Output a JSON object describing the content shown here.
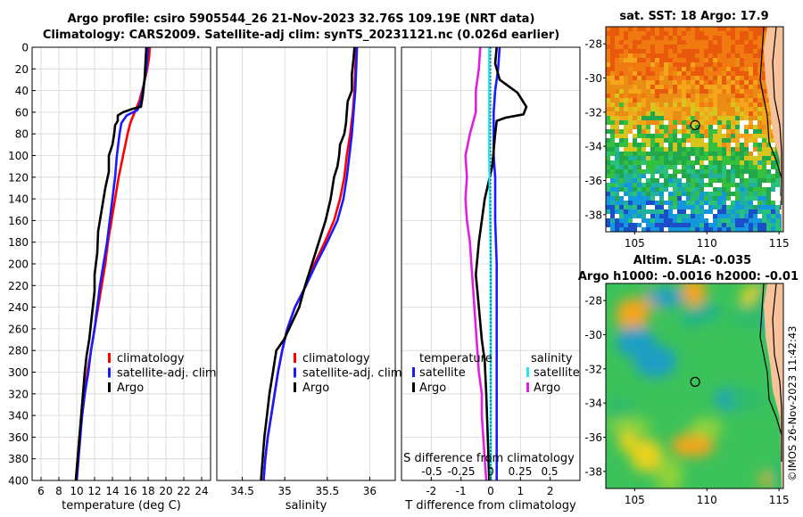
{
  "title": {
    "line1": "Argo profile: csiro 5905544_26 21-Nov-2023 32.76S 109.19E (NRT data)",
    "line2": "Climatology: CARS2009. Satellite-adj clim: synTS_20231121.nc (0.026d earlier)"
  },
  "stamp": "©IMOS 26-Nov-2023 11:42:43",
  "colors": {
    "climatology": "#ff0000",
    "satellite_adj": "#1a1aff",
    "argo": "#000000",
    "sat_sal": "#22e6f0",
    "argo_sal": "#e020e0"
  },
  "chart_data": [
    {
      "type": "line",
      "name": "temperature-profile",
      "xlabel": "temperature (deg C)",
      "ylabel": "",
      "xlim": [
        5,
        25
      ],
      "ylim": [
        400,
        0
      ],
      "xticks": [
        6,
        8,
        10,
        12,
        14,
        16,
        18,
        20,
        22,
        24
      ],
      "yticks": [
        0,
        20,
        40,
        60,
        80,
        100,
        120,
        140,
        160,
        180,
        200,
        220,
        240,
        260,
        280,
        300,
        320,
        340,
        360,
        380,
        400
      ],
      "legend": [
        "climatology",
        "satellite-adj. clim",
        "Argo"
      ],
      "series": [
        {
          "name": "climatology",
          "color": "#ff0000",
          "points": [
            [
              18.2,
              0
            ],
            [
              18.1,
              10
            ],
            [
              17.9,
              20
            ],
            [
              17.5,
              35
            ],
            [
              17.0,
              50
            ],
            [
              16.5,
              60
            ],
            [
              16.0,
              70
            ],
            [
              15.7,
              80
            ],
            [
              15.2,
              100
            ],
            [
              14.7,
              120
            ],
            [
              14.3,
              140
            ],
            [
              13.9,
              160
            ],
            [
              13.5,
              180
            ],
            [
              13.2,
              200
            ],
            [
              12.8,
              220
            ],
            [
              12.4,
              240
            ],
            [
              12.0,
              260
            ],
            [
              11.6,
              280
            ],
            [
              11.2,
              300
            ],
            [
              10.9,
              320
            ],
            [
              10.6,
              340
            ],
            [
              10.3,
              360
            ],
            [
              10.1,
              380
            ],
            [
              9.9,
              400
            ]
          ]
        },
        {
          "name": "satellite-adj. clim",
          "color": "#1a1aff",
          "points": [
            [
              18.0,
              0
            ],
            [
              17.9,
              10
            ],
            [
              17.8,
              20
            ],
            [
              17.5,
              35
            ],
            [
              17.2,
              50
            ],
            [
              16.8,
              58
            ],
            [
              15.6,
              63
            ],
            [
              15.0,
              70
            ],
            [
              14.8,
              80
            ],
            [
              14.5,
              100
            ],
            [
              14.3,
              120
            ],
            [
              14.0,
              140
            ],
            [
              13.7,
              160
            ],
            [
              13.4,
              180
            ],
            [
              13.0,
              200
            ],
            [
              12.6,
              220
            ],
            [
              12.3,
              240
            ],
            [
              12.0,
              260
            ],
            [
              11.6,
              280
            ],
            [
              11.3,
              300
            ],
            [
              10.9,
              320
            ],
            [
              10.6,
              340
            ],
            [
              10.4,
              360
            ],
            [
              10.2,
              380
            ],
            [
              10.0,
              400
            ]
          ]
        },
        {
          "name": "Argo",
          "color": "#000000",
          "points": [
            [
              17.8,
              0
            ],
            [
              17.7,
              15
            ],
            [
              17.6,
              30
            ],
            [
              17.4,
              45
            ],
            [
              17.2,
              55
            ],
            [
              16.2,
              57
            ],
            [
              15.2,
              60
            ],
            [
              14.6,
              63
            ],
            [
              14.6,
              68
            ],
            [
              14.3,
              72
            ],
            [
              14.2,
              80
            ],
            [
              14.0,
              90
            ],
            [
              13.6,
              100
            ],
            [
              13.6,
              115
            ],
            [
              13.2,
              130
            ],
            [
              12.8,
              150
            ],
            [
              12.4,
              170
            ],
            [
              12.3,
              190
            ],
            [
              12.0,
              210
            ],
            [
              12.0,
              225
            ],
            [
              11.8,
              240
            ],
            [
              11.6,
              255
            ],
            [
              11.4,
              270
            ],
            [
              11.1,
              285
            ],
            [
              10.9,
              300
            ],
            [
              10.7,
              320
            ],
            [
              10.5,
              340
            ],
            [
              10.3,
              360
            ],
            [
              10.1,
              380
            ],
            [
              9.9,
              400
            ]
          ]
        }
      ]
    },
    {
      "type": "line",
      "name": "salinity-profile",
      "xlabel": "salinity",
      "xlim": [
        34.2,
        36.3
      ],
      "ylim": [
        400,
        0
      ],
      "xticks": [
        34.5,
        35,
        35.5,
        36
      ],
      "legend": [
        "climatology",
        "satellite-adj. clim",
        "Argo"
      ],
      "series": [
        {
          "name": "climatology",
          "color": "#ff0000",
          "points": [
            [
              35.84,
              0
            ],
            [
              35.83,
              20
            ],
            [
              35.82,
              40
            ],
            [
              35.8,
              60
            ],
            [
              35.77,
              80
            ],
            [
              35.73,
              100
            ],
            [
              35.7,
              120
            ],
            [
              35.65,
              140
            ],
            [
              35.58,
              160
            ],
            [
              35.47,
              180
            ],
            [
              35.35,
              200
            ],
            [
              35.25,
              220
            ],
            [
              35.12,
              240
            ],
            [
              35.03,
              260
            ],
            [
              34.97,
              280
            ],
            [
              34.92,
              300
            ],
            [
              34.88,
              320
            ],
            [
              34.84,
              340
            ],
            [
              34.8,
              360
            ],
            [
              34.77,
              380
            ],
            [
              34.75,
              400
            ]
          ]
        },
        {
          "name": "satellite-adj. clim",
          "color": "#1a1aff",
          "points": [
            [
              35.85,
              0
            ],
            [
              35.84,
              20
            ],
            [
              35.83,
              40
            ],
            [
              35.81,
              60
            ],
            [
              35.79,
              80
            ],
            [
              35.76,
              100
            ],
            [
              35.73,
              120
            ],
            [
              35.69,
              140
            ],
            [
              35.62,
              160
            ],
            [
              35.5,
              180
            ],
            [
              35.37,
              200
            ],
            [
              35.25,
              220
            ],
            [
              35.12,
              240
            ],
            [
              35.03,
              260
            ],
            [
              34.97,
              280
            ],
            [
              34.92,
              300
            ],
            [
              34.88,
              320
            ],
            [
              34.84,
              340
            ],
            [
              34.8,
              360
            ],
            [
              34.77,
              380
            ],
            [
              34.75,
              400
            ]
          ]
        },
        {
          "name": "Argo",
          "color": "#000000",
          "points": [
            [
              35.82,
              0
            ],
            [
              35.81,
              10
            ],
            [
              35.79,
              25
            ],
            [
              35.79,
              40
            ],
            [
              35.74,
              50
            ],
            [
              35.73,
              60
            ],
            [
              35.72,
              70
            ],
            [
              35.7,
              80
            ],
            [
              35.65,
              90
            ],
            [
              35.64,
              100
            ],
            [
              35.62,
              110
            ],
            [
              35.58,
              120
            ],
            [
              35.54,
              140
            ],
            [
              35.48,
              160
            ],
            [
              35.4,
              180
            ],
            [
              35.32,
              200
            ],
            [
              35.24,
              220
            ],
            [
              35.17,
              240
            ],
            [
              35.05,
              260
            ],
            [
              34.99,
              270
            ],
            [
              34.9,
              280
            ],
            [
              34.86,
              300
            ],
            [
              34.82,
              320
            ],
            [
              34.79,
              340
            ],
            [
              34.76,
              360
            ],
            [
              34.74,
              380
            ],
            [
              34.72,
              400
            ]
          ]
        }
      ]
    },
    {
      "type": "line",
      "name": "difference-profile",
      "xlabel": "T difference from climatology",
      "top_axis_label": "S difference from climatology",
      "xlim": [
        -3,
        3
      ],
      "ylim": [
        400,
        0
      ],
      "xticks": [
        -2,
        -1,
        0,
        1,
        2
      ],
      "top_ticks": [
        "-0.5",
        "-0.25",
        "0",
        "0.25",
        "0.5"
      ],
      "legend_left_title": "temperature",
      "legend_right_title": "salinity",
      "legend": [
        "satellite",
        "Argo",
        "satellite",
        "Argo"
      ],
      "series": [
        {
          "name": "temperature satellite",
          "color": "#1a1aff",
          "points": [
            [
              0.3,
              0
            ],
            [
              0.25,
              20
            ],
            [
              0.15,
              40
            ],
            [
              0.1,
              60
            ],
            [
              0.1,
              80
            ],
            [
              0.1,
              100
            ],
            [
              0.15,
              120
            ],
            [
              0.15,
              160
            ],
            [
              0.2,
              200
            ],
            [
              0.2,
              240
            ],
            [
              0.2,
              280
            ],
            [
              0.2,
              320
            ],
            [
              0.2,
              360
            ],
            [
              0.2,
              400
            ]
          ]
        },
        {
          "name": "temperature Argo",
          "color": "#000000",
          "points": [
            [
              0.2,
              0
            ],
            [
              0.15,
              15
            ],
            [
              0.3,
              30
            ],
            [
              0.9,
              42
            ],
            [
              1.2,
              55
            ],
            [
              1.1,
              62
            ],
            [
              0.5,
              65
            ],
            [
              0.2,
              68
            ],
            [
              0.15,
              80
            ],
            [
              0.1,
              95
            ],
            [
              0.05,
              110
            ],
            [
              -0.2,
              140
            ],
            [
              -0.4,
              180
            ],
            [
              -0.5,
              210
            ],
            [
              -0.4,
              240
            ],
            [
              -0.3,
              270
            ],
            [
              -0.2,
              290
            ],
            [
              -0.15,
              320
            ],
            [
              -0.1,
              360
            ],
            [
              -0.05,
              400
            ]
          ]
        },
        {
          "name": "salinity satellite",
          "color": "#22e6f0",
          "points": [
            [
              -0.05,
              0
            ],
            [
              -0.05,
              100
            ],
            [
              -0.02,
              150
            ],
            [
              0,
              200
            ],
            [
              0,
              250
            ],
            [
              0,
              300
            ],
            [
              0,
              350
            ],
            [
              0,
              400
            ]
          ]
        },
        {
          "name": "salinity Argo",
          "color": "#e020e0",
          "points": [
            [
              -0.35,
              0
            ],
            [
              -0.4,
              20
            ],
            [
              -0.5,
              40
            ],
            [
              -0.5,
              60
            ],
            [
              -0.7,
              80
            ],
            [
              -0.85,
              100
            ],
            [
              -0.8,
              120
            ],
            [
              -0.85,
              140
            ],
            [
              -0.8,
              160
            ],
            [
              -0.7,
              180
            ],
            [
              -0.65,
              200
            ],
            [
              -0.6,
              220
            ],
            [
              -0.55,
              240
            ],
            [
              -0.5,
              260
            ],
            [
              -0.45,
              280
            ],
            [
              -0.4,
              300
            ],
            [
              -0.3,
              320
            ],
            [
              -0.3,
              340
            ],
            [
              -0.25,
              360
            ],
            [
              -0.2,
              380
            ],
            [
              -0.15,
              400
            ]
          ]
        }
      ]
    },
    {
      "type": "heatmap",
      "name": "sst-map",
      "title": "sat. SST: 18 Argo: 17.9",
      "xticks": [
        105,
        110,
        115
      ],
      "yticks": [
        -28,
        -30,
        -32,
        -34,
        -36,
        -38
      ],
      "xlim": [
        103,
        115.3
      ],
      "ylim": [
        -39,
        -27
      ],
      "marker": [
        109.19,
        -32.76
      ]
    },
    {
      "type": "heatmap",
      "name": "sla-map",
      "title_line1": "Altim. SLA: -0.035",
      "title_line2": "Argo h1000: -0.0016 h2000: -0.01",
      "xticks": [
        105,
        110,
        115
      ],
      "yticks": [
        -28,
        -30,
        -32,
        -34,
        -36,
        -38
      ],
      "xlim": [
        103,
        115.3
      ],
      "ylim": [
        -39,
        -27
      ],
      "marker": [
        109.19,
        -32.76
      ]
    }
  ]
}
